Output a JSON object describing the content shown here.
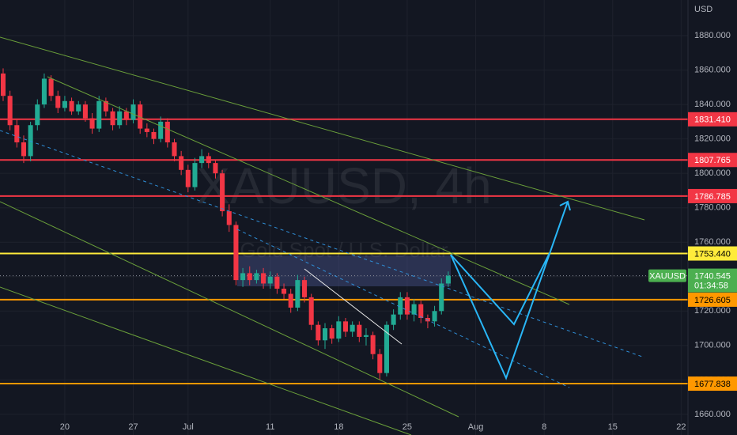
{
  "chart_data": {
    "type": "candlestick",
    "symbol": "XAUUSD",
    "watermark_title": "XAUUSD, 4h",
    "watermark_subtitle": "Gold Spot / U.S. Dollar",
    "currency": "USD",
    "x": [
      -4.5,
      -4,
      -3.5,
      -3,
      -2.5,
      -2,
      -1.5,
      -1,
      -0.5,
      0,
      0.5,
      1,
      1.5,
      2,
      2.5,
      3,
      3.5,
      4,
      4.5,
      5,
      5.5,
      6,
      6.5,
      7,
      7.5,
      8,
      8.5,
      9,
      9.5,
      10,
      10.5,
      11,
      11.5,
      12,
      12.5,
      13,
      13.5,
      14,
      14.5,
      15,
      15.5,
      16,
      16.5,
      17,
      17.5,
      18,
      18.5,
      19,
      19.5,
      20,
      20.5,
      21,
      21.5,
      22,
      22.5,
      23,
      23.5,
      24,
      24.5,
      25,
      25.5,
      26,
      26.5,
      27,
      27.5,
      28
    ],
    "open": [
      1858,
      1845,
      1828,
      1818,
      1810,
      1828,
      1840,
      1855,
      1845,
      1838,
      1842,
      1836,
      1840,
      1832,
      1826,
      1842,
      1836,
      1828,
      1836,
      1831,
      1840,
      1826,
      1824,
      1820,
      1830,
      1818,
      1810,
      1802,
      1792,
      1806,
      1810,
      1806,
      1800,
      1778,
      1770,
      1738,
      1742,
      1738,
      1742,
      1736,
      1740,
      1733,
      1730,
      1722,
      1738,
      1728,
      1712,
      1703,
      1710,
      1704,
      1714,
      1708,
      1712,
      1705,
      1706,
      1695,
      1684,
      1712,
      1718,
      1728,
      1718,
      1724,
      1716,
      1714,
      1720,
      1736
    ],
    "high": [
      1861,
      1848,
      1831,
      1822,
      1830,
      1843,
      1858,
      1857,
      1848,
      1845,
      1844,
      1842,
      1842,
      1835,
      1845,
      1844,
      1838,
      1839,
      1838,
      1843,
      1842,
      1829,
      1826,
      1833,
      1832,
      1820,
      1813,
      1805,
      1809,
      1814,
      1812,
      1808,
      1802,
      1782,
      1772,
      1745,
      1746,
      1744,
      1745,
      1743,
      1742,
      1736,
      1733,
      1741,
      1740,
      1730,
      1714,
      1713,
      1712,
      1717,
      1716,
      1714,
      1714,
      1710,
      1708,
      1698,
      1714,
      1721,
      1731,
      1731,
      1727,
      1726,
      1718,
      1723,
      1739,
      1743
    ],
    "low": [
      1842,
      1825,
      1815,
      1806,
      1807,
      1825,
      1838,
      1842,
      1835,
      1836,
      1834,
      1834,
      1830,
      1823,
      1824,
      1833,
      1825,
      1826,
      1828,
      1829,
      1823,
      1821,
      1817,
      1818,
      1815,
      1807,
      1799,
      1789,
      1790,
      1803,
      1803,
      1797,
      1775,
      1766,
      1735,
      1734,
      1735,
      1736,
      1733,
      1733,
      1730,
      1727,
      1719,
      1720,
      1725,
      1709,
      1700,
      1698,
      1701,
      1702,
      1705,
      1705,
      1702,
      1700,
      1692,
      1680,
      1682,
      1709,
      1715,
      1715,
      1714,
      1713,
      1710,
      1711,
      1718,
      1734
    ],
    "close": [
      1845,
      1828,
      1818,
      1810,
      1828,
      1840,
      1855,
      1845,
      1838,
      1842,
      1836,
      1840,
      1832,
      1826,
      1842,
      1836,
      1828,
      1836,
      1831,
      1840,
      1826,
      1824,
      1820,
      1830,
      1818,
      1810,
      1802,
      1792,
      1806,
      1810,
      1806,
      1800,
      1778,
      1770,
      1738,
      1742,
      1738,
      1742,
      1736,
      1740,
      1733,
      1730,
      1722,
      1738,
      1728,
      1712,
      1703,
      1710,
      1704,
      1714,
      1708,
      1712,
      1705,
      1706,
      1695,
      1684,
      1712,
      1718,
      1728,
      1718,
      1724,
      1716,
      1714,
      1720,
      1736,
      1740.545
    ],
    "up_color": "#22ab94",
    "down_color": "#f23645",
    "xlim": [
      -4.73,
      45.5
    ],
    "xticks": [
      {
        "value": 0,
        "label": "20"
      },
      {
        "value": 5,
        "label": "27"
      },
      {
        "value": 9,
        "label": "Jul"
      },
      {
        "value": 15,
        "label": "11"
      },
      {
        "value": 20,
        "label": "18"
      },
      {
        "value": 25,
        "label": "25"
      },
      {
        "value": 30,
        "label": "Aug"
      },
      {
        "value": 35,
        "label": "8"
      },
      {
        "value": 40,
        "label": "15"
      },
      {
        "value": 45,
        "label": "22"
      }
    ],
    "ylim": [
      1648,
      1900.7
    ],
    "yticks": [
      {
        "value": 1660,
        "label": "1660.000"
      },
      {
        "value": 1680,
        "label": "1680.000"
      },
      {
        "value": 1700,
        "label": "1700.000"
      },
      {
        "value": 1720,
        "label": "1720.000"
      },
      {
        "value": 1740,
        "label": "1740.000"
      },
      {
        "value": 1760,
        "label": "1760.000"
      },
      {
        "value": 1780,
        "label": "1780.000"
      },
      {
        "value": 1800,
        "label": "1800.000"
      },
      {
        "value": 1820,
        "label": "1820.000"
      },
      {
        "value": 1840,
        "label": "1840.000"
      },
      {
        "value": 1860,
        "label": "1860.000"
      },
      {
        "value": 1880,
        "label": "1880.000"
      }
    ],
    "levels": [
      {
        "value": 1831.41,
        "label": "1831.410",
        "color": "#f23645",
        "text_color": "#ffffff"
      },
      {
        "value": 1807.765,
        "label": "1807.765",
        "color": "#f23645",
        "text_color": "#ffffff"
      },
      {
        "value": 1786.785,
        "label": "1786.785",
        "color": "#f23645",
        "text_color": "#ffffff"
      },
      {
        "value": 1753.44,
        "label": "1753.440",
        "color": "#ffeb3b",
        "text_color": "#000000"
      },
      {
        "value": 1726.605,
        "label": "1726.605",
        "color": "#ff9800",
        "text_color": "#000000"
      },
      {
        "value": 1677.838,
        "label": "1677.838",
        "color": "#ff9800",
        "text_color": "#000000"
      }
    ],
    "last_price": {
      "value": 1740.545,
      "label": "1740.545",
      "countdown": "01:34:58",
      "color": "#4caf50"
    },
    "grid": true
  }
}
